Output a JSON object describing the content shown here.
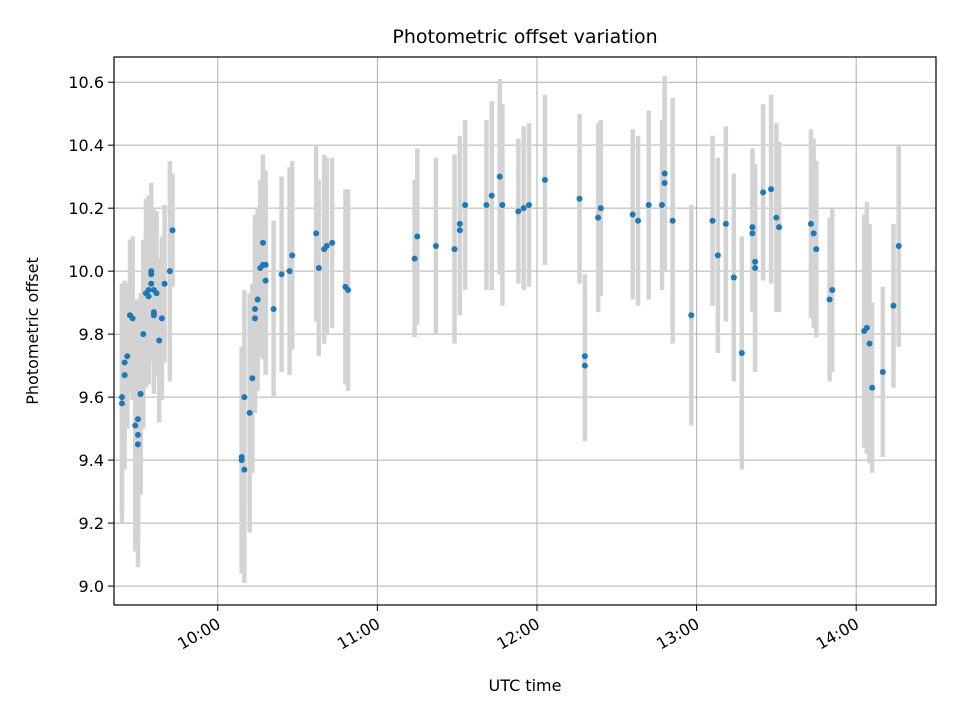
{
  "chart_data": {
    "type": "scatter",
    "title": "Photometric offset variation",
    "xlabel": "UTC time",
    "ylabel": "Photometric offset",
    "xlim": [
      "09:21",
      "14:30"
    ],
    "ylim": [
      8.94,
      10.68
    ],
    "grid": true,
    "x_ticks": [
      "10:00",
      "11:00",
      "12:00",
      "13:00",
      "14:00"
    ],
    "y_ticks": [
      "9.0",
      "9.2",
      "9.4",
      "9.6",
      "9.8",
      "10.0",
      "10.2",
      "10.4",
      "10.6"
    ],
    "colors": {
      "marker": "#1f77b4",
      "errorbar": "#d3d3d3",
      "grid": "#b0b0b0"
    },
    "points": [
      {
        "t": "09:24",
        "y": 9.6,
        "err": 0.36
      },
      {
        "t": "09:24",
        "y": 9.58,
        "err": 0.38
      },
      {
        "t": "09:25",
        "y": 9.67,
        "err": 0.3
      },
      {
        "t": "09:25",
        "y": 9.71,
        "err": 0.25
      },
      {
        "t": "09:26",
        "y": 9.73,
        "err": 0.23
      },
      {
        "t": "09:27",
        "y": 9.86,
        "err": 0.24
      },
      {
        "t": "09:28",
        "y": 9.85,
        "err": 0.26
      },
      {
        "t": "09:29",
        "y": 9.51,
        "err": 0.4
      },
      {
        "t": "09:30",
        "y": 9.48,
        "err": 0.38
      },
      {
        "t": "09:30",
        "y": 9.45,
        "err": 0.39
      },
      {
        "t": "09:30",
        "y": 9.53,
        "err": 0.38
      },
      {
        "t": "09:31",
        "y": 9.61,
        "err": 0.32
      },
      {
        "t": "09:31",
        "y": 9.61,
        "err": 0.3
      },
      {
        "t": "09:32",
        "y": 9.8,
        "err": 0.3
      },
      {
        "t": "09:33",
        "y": 9.93,
        "err": 0.3
      },
      {
        "t": "09:34",
        "y": 9.94,
        "err": 0.3
      },
      {
        "t": "09:34",
        "y": 9.92,
        "err": 0.28
      },
      {
        "t": "09:35",
        "y": 9.96,
        "err": 0.25
      },
      {
        "t": "09:35",
        "y": 9.99,
        "err": 0.27
      },
      {
        "t": "09:35",
        "y": 10.0,
        "err": 0.28
      },
      {
        "t": "09:36",
        "y": 9.94,
        "err": 0.26
      },
      {
        "t": "09:36",
        "y": 9.87,
        "err": 0.24
      },
      {
        "t": "09:36",
        "y": 9.86,
        "err": 0.25
      },
      {
        "t": "09:37",
        "y": 9.93,
        "err": 0.26
      },
      {
        "t": "09:38",
        "y": 9.78,
        "err": 0.26
      },
      {
        "t": "09:39",
        "y": 9.85,
        "err": 0.26
      },
      {
        "t": "09:40",
        "y": 9.96,
        "err": 0.25
      },
      {
        "t": "09:42",
        "y": 10.0,
        "err": 0.35
      },
      {
        "t": "09:43",
        "y": 10.13,
        "err": 0.18
      },
      {
        "t": "10:09",
        "y": 9.41,
        "err": 0.33
      },
      {
        "t": "10:09",
        "y": 9.4,
        "err": 0.36
      },
      {
        "t": "10:10",
        "y": 9.37,
        "err": 0.36
      },
      {
        "t": "10:10",
        "y": 9.6,
        "err": 0.34
      },
      {
        "t": "10:12",
        "y": 9.55,
        "err": 0.38
      },
      {
        "t": "10:13",
        "y": 9.66,
        "err": 0.3
      },
      {
        "t": "10:14",
        "y": 9.85,
        "err": 0.3
      },
      {
        "t": "10:14",
        "y": 9.88,
        "err": 0.3
      },
      {
        "t": "10:15",
        "y": 9.91,
        "err": 0.29
      },
      {
        "t": "10:16",
        "y": 10.01,
        "err": 0.28
      },
      {
        "t": "10:17",
        "y": 10.02,
        "err": 0.3
      },
      {
        "t": "10:17",
        "y": 10.09,
        "err": 0.28
      },
      {
        "t": "10:18",
        "y": 9.97,
        "err": 0.3
      },
      {
        "t": "10:18",
        "y": 10.02,
        "err": 0.3
      },
      {
        "t": "10:21",
        "y": 9.88,
        "err": 0.28
      },
      {
        "t": "10:24",
        "y": 9.99,
        "err": 0.31
      },
      {
        "t": "10:27",
        "y": 10.0,
        "err": 0.33
      },
      {
        "t": "10:28",
        "y": 10.05,
        "err": 0.3
      },
      {
        "t": "10:37",
        "y": 10.12,
        "err": 0.28
      },
      {
        "t": "10:38",
        "y": 10.01,
        "err": 0.28
      },
      {
        "t": "10:40",
        "y": 10.07,
        "err": 0.3
      },
      {
        "t": "10:41",
        "y": 10.08,
        "err": 0.28
      },
      {
        "t": "10:43",
        "y": 10.09,
        "err": 0.27
      },
      {
        "t": "10:48",
        "y": 9.95,
        "err": 0.31
      },
      {
        "t": "10:49",
        "y": 9.94,
        "err": 0.32
      },
      {
        "t": "11:14",
        "y": 10.04,
        "err": 0.25
      },
      {
        "t": "11:15",
        "y": 10.11,
        "err": 0.28
      },
      {
        "t": "11:22",
        "y": 10.08,
        "err": 0.28
      },
      {
        "t": "11:29",
        "y": 10.07,
        "err": 0.3
      },
      {
        "t": "11:31",
        "y": 10.15,
        "err": 0.28
      },
      {
        "t": "11:31",
        "y": 10.13,
        "err": 0.27
      },
      {
        "t": "11:33",
        "y": 10.21,
        "err": 0.27
      },
      {
        "t": "11:41",
        "y": 10.21,
        "err": 0.27
      },
      {
        "t": "11:43",
        "y": 10.24,
        "err": 0.3
      },
      {
        "t": "11:46",
        "y": 10.3,
        "err": 0.31
      },
      {
        "t": "11:47",
        "y": 10.21,
        "err": 0.32
      },
      {
        "t": "11:53",
        "y": 10.19,
        "err": 0.23
      },
      {
        "t": "11:55",
        "y": 10.2,
        "err": 0.26
      },
      {
        "t": "11:57",
        "y": 10.21,
        "err": 0.26
      },
      {
        "t": "12:03",
        "y": 10.29,
        "err": 0.27
      },
      {
        "t": "12:16",
        "y": 10.23,
        "err": 0.27
      },
      {
        "t": "12:18",
        "y": 9.7,
        "err": 0.24
      },
      {
        "t": "12:18",
        "y": 9.73,
        "err": 0.26
      },
      {
        "t": "12:23",
        "y": 10.17,
        "err": 0.3
      },
      {
        "t": "12:24",
        "y": 10.2,
        "err": 0.28
      },
      {
        "t": "12:36",
        "y": 10.18,
        "err": 0.27
      },
      {
        "t": "12:38",
        "y": 10.16,
        "err": 0.27
      },
      {
        "t": "12:42",
        "y": 10.21,
        "err": 0.3
      },
      {
        "t": "12:47",
        "y": 10.21,
        "err": 0.27
      },
      {
        "t": "12:48",
        "y": 10.28,
        "err": 0.28
      },
      {
        "t": "12:48",
        "y": 10.31,
        "err": 0.31
      },
      {
        "t": "12:51",
        "y": 10.16,
        "err": 0.39
      },
      {
        "t": "12:58",
        "y": 9.86,
        "err": 0.35
      },
      {
        "t": "13:06",
        "y": 10.16,
        "err": 0.27
      },
      {
        "t": "13:08",
        "y": 10.05,
        "err": 0.31
      },
      {
        "t": "13:11",
        "y": 10.15,
        "err": 0.31
      },
      {
        "t": "13:14",
        "y": 9.98,
        "err": 0.33
      },
      {
        "t": "13:17",
        "y": 9.74,
        "err": 0.37
      },
      {
        "t": "13:21",
        "y": 10.12,
        "err": 0.25
      },
      {
        "t": "13:21",
        "y": 10.14,
        "err": 0.25
      },
      {
        "t": "13:22",
        "y": 10.01,
        "err": 0.33
      },
      {
        "t": "13:22",
        "y": 10.03,
        "err": 0.31
      },
      {
        "t": "13:25",
        "y": 10.25,
        "err": 0.28
      },
      {
        "t": "13:28",
        "y": 10.26,
        "err": 0.3
      },
      {
        "t": "13:30",
        "y": 10.17,
        "err": 0.3
      },
      {
        "t": "13:31",
        "y": 10.14,
        "err": 0.27
      },
      {
        "t": "13:43",
        "y": 10.15,
        "err": 0.3
      },
      {
        "t": "13:44",
        "y": 10.12,
        "err": 0.3
      },
      {
        "t": "13:45",
        "y": 10.07,
        "err": 0.28
      },
      {
        "t": "13:50",
        "y": 9.91,
        "err": 0.26
      },
      {
        "t": "13:51",
        "y": 9.94,
        "err": 0.26
      },
      {
        "t": "14:03",
        "y": 9.81,
        "err": 0.37
      },
      {
        "t": "14:04",
        "y": 9.82,
        "err": 0.4
      },
      {
        "t": "14:05",
        "y": 9.77,
        "err": 0.38
      },
      {
        "t": "14:06",
        "y": 9.63,
        "err": 0.27
      },
      {
        "t": "14:10",
        "y": 9.68,
        "err": 0.27
      },
      {
        "t": "14:14",
        "y": 9.89,
        "err": 0.26
      },
      {
        "t": "14:16",
        "y": 10.08,
        "err": 0.32
      }
    ]
  }
}
